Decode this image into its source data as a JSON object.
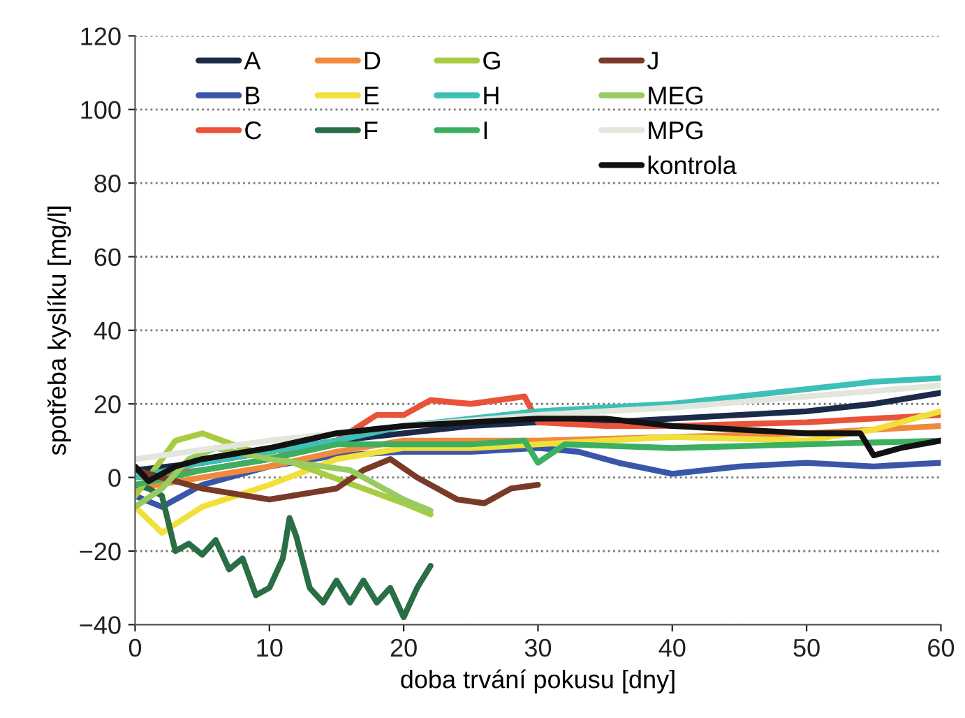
{
  "chart_data": {
    "type": "line",
    "xlabel": "doba trvání pokusu [dny]",
    "ylabel": "spotřeba kyslíku [mg/l]",
    "xlim": [
      0,
      60
    ],
    "xticks": [
      0,
      10,
      20,
      30,
      40,
      50,
      60
    ],
    "ylim": [
      -40,
      120
    ],
    "yticks": [
      {
        "value": -40,
        "label": "−40"
      },
      {
        "value": -20,
        "label": "−20"
      },
      0,
      20,
      40,
      60,
      80,
      100,
      120
    ],
    "grid": "y",
    "legend": "top left",
    "line_style": "solid",
    "marker": "none",
    "series": [
      {
        "name": "A",
        "color": "#1c2a4a",
        "x": [
          0,
          5,
          10,
          15,
          20,
          25,
          30,
          35,
          40,
          45,
          50,
          55,
          60
        ],
        "values": [
          2,
          4,
          7,
          10,
          12,
          14,
          15,
          15,
          16,
          17,
          18,
          20,
          23
        ]
      },
      {
        "name": "B",
        "color": "#3a56a8",
        "x": [
          0,
          2,
          5,
          10,
          15,
          20,
          25,
          30,
          33,
          36,
          40,
          45,
          50,
          55,
          60
        ],
        "values": [
          -5,
          -8,
          -2,
          3,
          6,
          7,
          7,
          8,
          7,
          4,
          1,
          3,
          4,
          3,
          4
        ]
      },
      {
        "name": "C",
        "color": "#e8533a",
        "x": [
          0,
          5,
          10,
          15,
          18,
          20,
          22,
          25,
          29,
          30,
          35,
          40,
          50,
          60
        ],
        "values": [
          0,
          2,
          5,
          10,
          17,
          17,
          21,
          20,
          22,
          15,
          14,
          14,
          15,
          17
        ]
      },
      {
        "name": "D",
        "color": "#f08a3c",
        "x": [
          0,
          5,
          10,
          15,
          20,
          25,
          30,
          40,
          50,
          60
        ],
        "values": [
          -3,
          0,
          3,
          7,
          10,
          10,
          10,
          11,
          12,
          14
        ]
      },
      {
        "name": "E",
        "color": "#f2e03a",
        "x": [
          0,
          2,
          5,
          10,
          15,
          20,
          25,
          30,
          40,
          50,
          55,
          60
        ],
        "values": [
          -8,
          -15,
          -8,
          -2,
          5,
          8,
          8,
          9,
          11,
          10,
          13,
          18
        ]
      },
      {
        "name": "F",
        "color": "#2a6e45",
        "x": [
          0,
          1,
          2,
          3,
          4,
          5,
          6,
          7,
          8,
          9,
          10,
          11,
          11.5,
          12,
          13,
          14,
          15,
          16,
          17,
          18,
          19,
          20,
          21,
          22
        ],
        "values": [
          -2,
          -3,
          -5,
          -20,
          -18,
          -21,
          -17,
          -25,
          -22,
          -32,
          -30,
          -22,
          -11,
          -16,
          -30,
          -34,
          -28,
          -34,
          -28,
          -34,
          -30,
          -38,
          -30,
          -24
        ]
      },
      {
        "name": "G",
        "color": "#a8cc40",
        "x": [
          0,
          1,
          3,
          5,
          8,
          11,
          14,
          17,
          20,
          22
        ],
        "values": [
          -5,
          0,
          10,
          12,
          8,
          5,
          1,
          -3,
          -7,
          -10
        ]
      },
      {
        "name": "H",
        "color": "#3cc0b8",
        "x": [
          0,
          5,
          10,
          15,
          20,
          25,
          30,
          35,
          40,
          45,
          50,
          55,
          60
        ],
        "values": [
          0,
          4,
          7,
          10,
          14,
          16,
          18,
          19,
          20,
          22,
          24,
          26,
          27
        ]
      },
      {
        "name": "I",
        "color": "#3cb060",
        "x": [
          0,
          5,
          10,
          15,
          20,
          25,
          29,
          30,
          32,
          40,
          50,
          60
        ],
        "values": [
          -2,
          2,
          5,
          9,
          9,
          9,
          10,
          4,
          9,
          8,
          9,
          10
        ]
      },
      {
        "name": "J",
        "color": "#7a3a28",
        "x": [
          0,
          3,
          5,
          10,
          15,
          17,
          19,
          21,
          24,
          26,
          28,
          30
        ],
        "values": [
          2,
          -1,
          -3,
          -6,
          -3,
          2,
          5,
          0,
          -6,
          -7,
          -3,
          -2
        ]
      },
      {
        "name": "MEG",
        "color": "#98cc60",
        "x": [
          0,
          2,
          4,
          6,
          10,
          14,
          16,
          18,
          20,
          22
        ],
        "values": [
          -8,
          -3,
          5,
          8,
          5,
          3,
          2,
          -2,
          -6,
          -9
        ]
      },
      {
        "name": "MPG",
        "color": "#e2e6dc",
        "x": [
          0,
          10,
          20,
          30,
          40,
          50,
          60
        ],
        "values": [
          5,
          10,
          14,
          17,
          19,
          22,
          25
        ]
      },
      {
        "name": "kontrola",
        "color": "#111111",
        "x": [
          0,
          1,
          3,
          5,
          10,
          15,
          20,
          25,
          30,
          35,
          40,
          45,
          50,
          54,
          55,
          57,
          60
        ],
        "values": [
          3,
          -1,
          3,
          5,
          8,
          12,
          14,
          15,
          16,
          16,
          14,
          13,
          12,
          12,
          6,
          8,
          10
        ]
      }
    ]
  }
}
